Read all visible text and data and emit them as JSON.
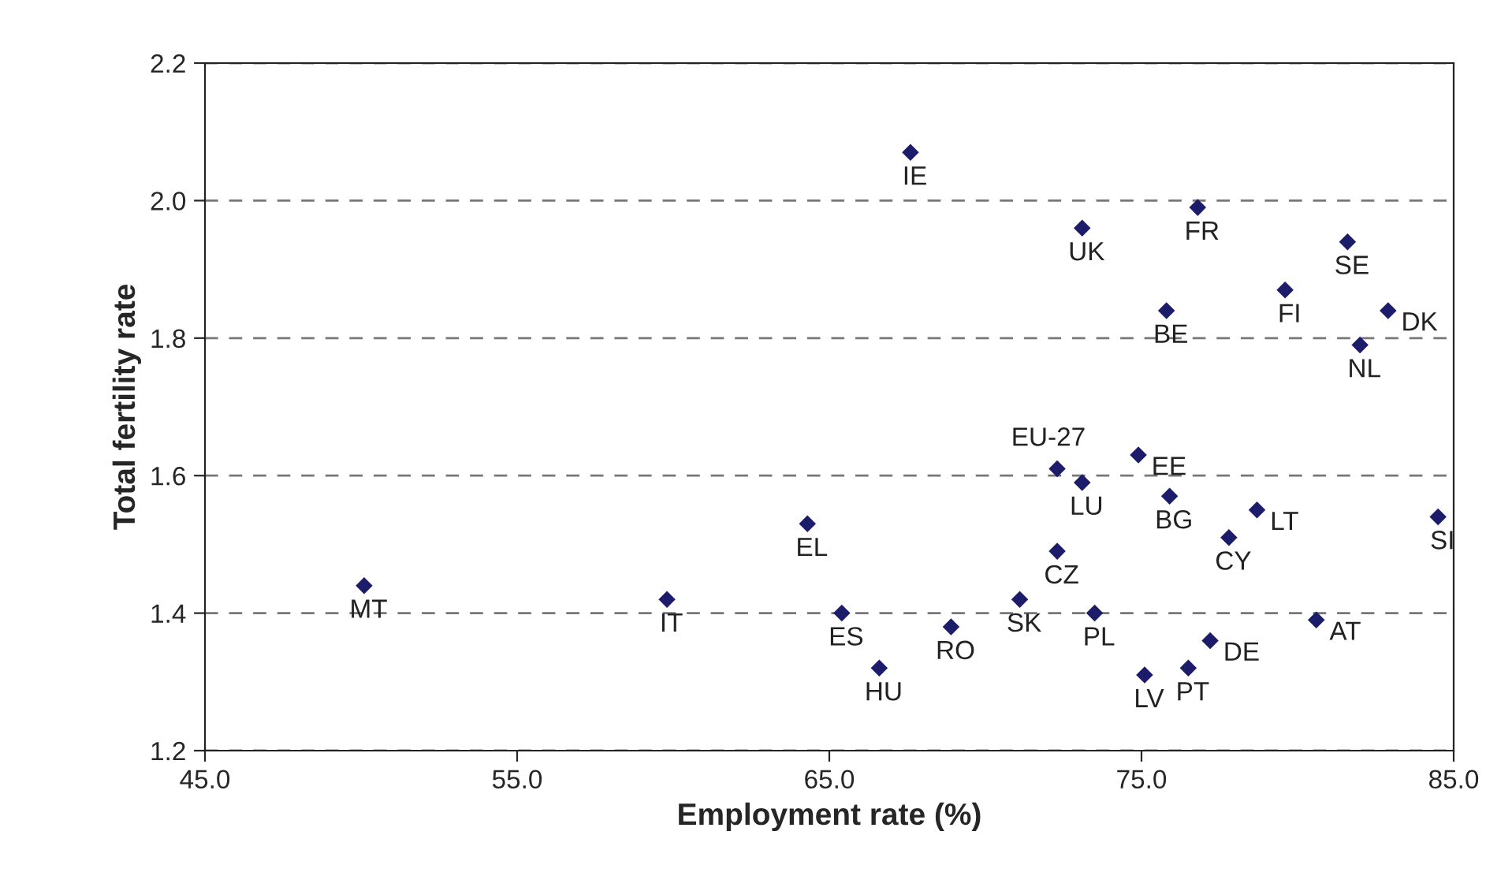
{
  "chart_data": {
    "type": "scatter",
    "xlabel": "Employment rate (%)",
    "ylabel": "Total fertility rate",
    "xlim": [
      45,
      85
    ],
    "ylim": [
      1.2,
      2.2
    ],
    "xticks": [
      {
        "value": 45,
        "label": "45.0"
      },
      {
        "value": 55,
        "label": "55.0"
      },
      {
        "value": 65,
        "label": "65.0"
      },
      {
        "value": 75,
        "label": "75.0"
      },
      {
        "value": 85,
        "label": "85.0"
      }
    ],
    "yticks": [
      {
        "value": 1.2,
        "label": "1.2"
      },
      {
        "value": 1.4,
        "label": "1.4"
      },
      {
        "value": 1.6,
        "label": "1.6"
      },
      {
        "value": 1.8,
        "label": "1.8"
      },
      {
        "value": 2.0,
        "label": "2.0"
      },
      {
        "value": 2.2,
        "label": "2.2"
      }
    ],
    "grid": "y",
    "marker": "diamond",
    "series": [
      {
        "color": "#1c1c6b",
        "x": [
          67.6,
          73.1,
          76.8,
          81.6,
          79.6,
          75.8,
          82.9,
          82.0,
          72.3,
          73.1,
          74.9,
          75.9,
          78.7,
          77.8,
          84.5,
          72.3,
          71.1,
          73.5,
          80.6,
          77.2,
          75.1,
          76.5,
          68.9,
          64.3,
          50.1,
          59.8,
          65.4,
          66.6
        ],
        "values": [
          2.07,
          1.96,
          1.99,
          1.94,
          1.87,
          1.84,
          1.84,
          1.79,
          1.61,
          1.59,
          1.63,
          1.57,
          1.55,
          1.51,
          1.54,
          1.49,
          1.42,
          1.4,
          1.39,
          1.36,
          1.31,
          1.32,
          1.38,
          1.53,
          1.44,
          1.42,
          1.4,
          1.32
        ],
        "value_labels": [
          "IE",
          "UK",
          "FR",
          "SE",
          "FI",
          "BE",
          "DK",
          "NL",
          "EU-27",
          "LU",
          "EE",
          "BG",
          "LT",
          "CY",
          "SI",
          "CZ",
          "SK",
          "PL",
          "AT",
          "DE",
          "LV",
          "PT",
          "RO",
          "EL",
          "MT",
          "IT",
          "ES",
          "HU"
        ]
      }
    ]
  }
}
